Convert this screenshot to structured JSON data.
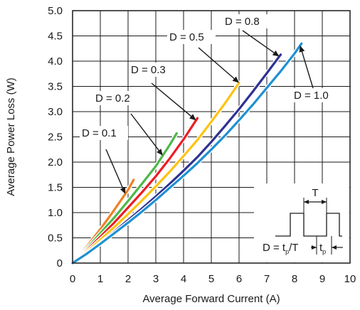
{
  "chart_data": {
    "type": "line",
    "title": "",
    "xlabel": "Average Forward Current (A)",
    "ylabel": "Average Power Loss (W)",
    "xlim": [
      0,
      10
    ],
    "ylim": [
      0,
      5.0
    ],
    "x_ticks": [
      "0",
      "1",
      "2",
      "3",
      "4",
      "5",
      "6",
      "7",
      "8",
      "9",
      "10"
    ],
    "y_ticks": [
      "0",
      "0.5",
      "1.0",
      "1.5",
      "2.0",
      "2.5",
      "3.0",
      "3.5",
      "4.0",
      "4.5",
      "5.0"
    ],
    "grid": true,
    "series": [
      {
        "name": "D = 0.1",
        "color": "#F07F22",
        "x": [
          0,
          0.5,
          1.0,
          1.5,
          2.0,
          2.2
        ],
        "y": [
          0,
          0.32,
          0.67,
          1.05,
          1.45,
          1.65
        ]
      },
      {
        "name": "D = 0.2",
        "color": "#4DB848",
        "x": [
          0,
          0.5,
          1.0,
          1.5,
          2.0,
          2.5,
          3.0,
          3.5,
          3.75
        ],
        "y": [
          0,
          0.28,
          0.59,
          0.9,
          1.23,
          1.57,
          1.92,
          2.34,
          2.57
        ]
      },
      {
        "name": "D = 0.3",
        "color": "#ED1C24",
        "x": [
          0,
          0.5,
          1.0,
          1.5,
          2.0,
          2.5,
          3.0,
          3.5,
          4.0,
          4.5
        ],
        "y": [
          0,
          0.25,
          0.52,
          0.8,
          1.1,
          1.4,
          1.72,
          2.07,
          2.45,
          2.87
        ]
      },
      {
        "name": "D = 0.5",
        "color": "#FFC20E",
        "x": [
          0,
          0.5,
          1.0,
          1.5,
          2.0,
          2.5,
          3.0,
          3.5,
          4.0,
          4.5,
          5.0,
          5.5,
          6.0
        ],
        "y": [
          0,
          0.22,
          0.46,
          0.71,
          0.97,
          1.24,
          1.52,
          1.81,
          2.12,
          2.44,
          2.8,
          3.17,
          3.57
        ]
      },
      {
        "name": "D = 0.8",
        "color": "#2E3192",
        "x": [
          0,
          0.5,
          1.0,
          1.5,
          2.0,
          2.5,
          3.0,
          3.5,
          4.0,
          4.5,
          5.0,
          5.5,
          6.0,
          6.5,
          7.0,
          7.5
        ],
        "y": [
          0,
          0.19,
          0.4,
          0.62,
          0.85,
          1.08,
          1.32,
          1.57,
          1.83,
          2.1,
          2.4,
          2.72,
          3.05,
          3.4,
          3.76,
          4.13
        ]
      },
      {
        "name": "D = 1.0",
        "color": "#1E90D2",
        "x": [
          0,
          0.5,
          1.0,
          1.5,
          2.0,
          2.5,
          3.0,
          3.5,
          4.0,
          4.5,
          5.0,
          5.5,
          6.0,
          6.5,
          7.0,
          7.5,
          8.0,
          8.25
        ],
        "y": [
          0,
          0.18,
          0.38,
          0.59,
          0.8,
          1.02,
          1.25,
          1.49,
          1.73,
          1.98,
          2.25,
          2.53,
          2.83,
          3.14,
          3.47,
          3.8,
          4.15,
          4.35
        ]
      }
    ],
    "annotations": [
      {
        "text": "D = 0.1",
        "series": "D = 0.1"
      },
      {
        "text": "D = 0.2",
        "series": "D = 0.2"
      },
      {
        "text": "D = 0.3",
        "series": "D = 0.3"
      },
      {
        "text": "D = 0.5",
        "series": "D = 0.5"
      },
      {
        "text": "D = 0.8",
        "series": "D = 0.8"
      },
      {
        "text": "D = 1.0",
        "series": "D = 1.0"
      }
    ],
    "inset": {
      "period_label": "T",
      "formula_prefix": "D = t",
      "formula_sub": "p",
      "formula_suffix": "/T",
      "pulse_label": "t",
      "pulse_sub": "p"
    }
  }
}
